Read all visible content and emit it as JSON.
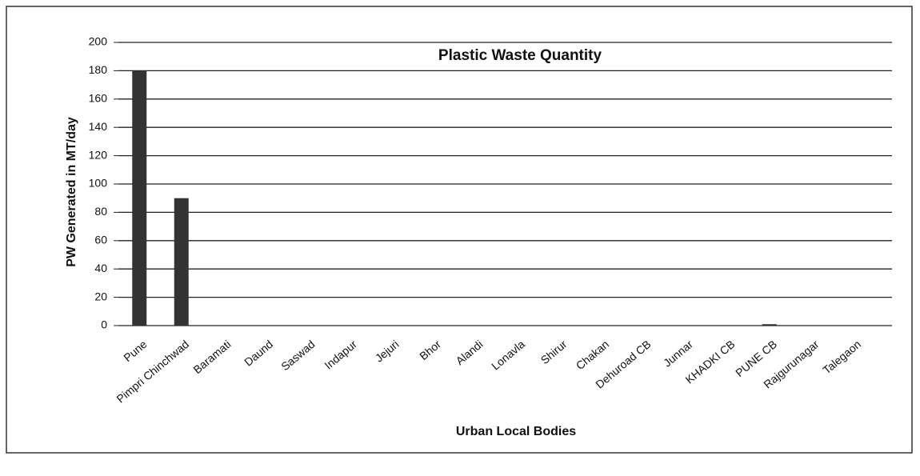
{
  "chart_data": {
    "type": "bar",
    "title": "Plastic Waste Quantity",
    "x_label": "Urban Local Bodies",
    "y_label": "PW Generated in MT/day",
    "categories": [
      "Pune",
      "Pimpri Chinchwad",
      "Baramati",
      "Daund",
      "Saswad",
      "Indapur",
      "Jejuri",
      "Bhor",
      "Alandi",
      "Lonavla",
      "Shirur",
      "Chakan",
      "Dehuroad CB",
      "Junnar",
      "KHADKI CB",
      "PUNE CB",
      "Rajgurunagar",
      "Talegaon"
    ],
    "values": [
      180,
      90,
      0,
      0,
      0,
      0,
      0,
      0,
      0,
      0,
      0,
      0,
      0,
      0,
      0,
      1,
      0,
      0
    ],
    "color": "#333333",
    "ylim": [
      0,
      200
    ],
    "yticks": [
      0,
      20,
      40,
      60,
      80,
      100,
      120,
      140,
      160,
      180,
      200
    ],
    "grid": true
  }
}
